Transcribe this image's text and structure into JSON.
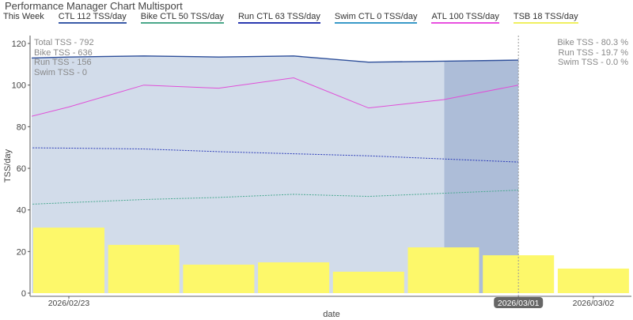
{
  "title": "Performance Manager Chart Multisport",
  "legend": {
    "label": "This Week",
    "items": [
      {
        "text": "CTL  112 TSS/day",
        "color": "#3a5aa8"
      },
      {
        "text": "Bike CTL  50 TSS/day",
        "color": "#4aa88a"
      },
      {
        "text": "Run CTL  63 TSS/day",
        "color": "#2a3ab0"
      },
      {
        "text": "Swim CTL  0 TSS/day",
        "color": "#3a9ac8"
      },
      {
        "text": "ATL  100 TSS/day",
        "color": "#e850e0"
      },
      {
        "text": "TSB  18 TSS/day",
        "color": "#f0f060"
      }
    ]
  },
  "annotations": {
    "left": [
      "Total TSS - 792",
      "Bike TSS - 636",
      "Run TSS - 156",
      "Swim TSS - 0"
    ],
    "right": [
      "Bike TSS - 80.3 %",
      "Run TSS - 19.7 %",
      "Swim TSS - 0.0 %"
    ]
  },
  "chart_data": {
    "type": "line",
    "xlabel": "date",
    "ylabel": "TSS/day",
    "ylim": [
      0,
      120
    ],
    "yticks": [
      0,
      20,
      40,
      60,
      80,
      100,
      120
    ],
    "xticks": [
      "2026/02/23",
      "2026/03/01",
      "2026/03/02"
    ],
    "highlighted_xtick": "2026/03/01",
    "x": [
      "2026/02/22",
      "2026/02/23",
      "2026/02/24",
      "2026/02/25",
      "2026/02/26",
      "2026/02/27",
      "2026/02/28",
      "2026/03/01"
    ],
    "series": [
      {
        "name": "CTL",
        "type": "area",
        "color": "#2e4f9a",
        "fill": "#d2dcea",
        "values": [
          112.5,
          113.5,
          114,
          113.5,
          114,
          111,
          111.5,
          112
        ]
      },
      {
        "name": "ATL",
        "color": "#e050d8",
        "values": [
          80.5,
          89.5,
          100,
          98.5,
          103.5,
          89,
          93,
          100
        ]
      },
      {
        "name": "Run CTL",
        "color": "#2a3ab8",
        "dash": true,
        "values": [
          70,
          69.7,
          69.3,
          68,
          67,
          66,
          64.5,
          63
        ]
      },
      {
        "name": "Bike CTL",
        "color": "#4aa890",
        "dash": true,
        "values": [
          42,
          43.5,
          45,
          46,
          47.5,
          46.5,
          48,
          49.5
        ]
      }
    ],
    "tsb_bars": {
      "name": "TSB",
      "color": "#fdf86a",
      "x": [
        "2026/02/23",
        "2026/02/24",
        "2026/02/25",
        "2026/02/26",
        "2026/02/27",
        "2026/02/28",
        "2026/03/01",
        "2026/03/02"
      ],
      "values": [
        31.5,
        23.2,
        13.7,
        14.8,
        10.3,
        22,
        18.2,
        11.8
      ]
    },
    "current_day": "2026/03/01",
    "current_day_shade": "#adbdd8"
  }
}
